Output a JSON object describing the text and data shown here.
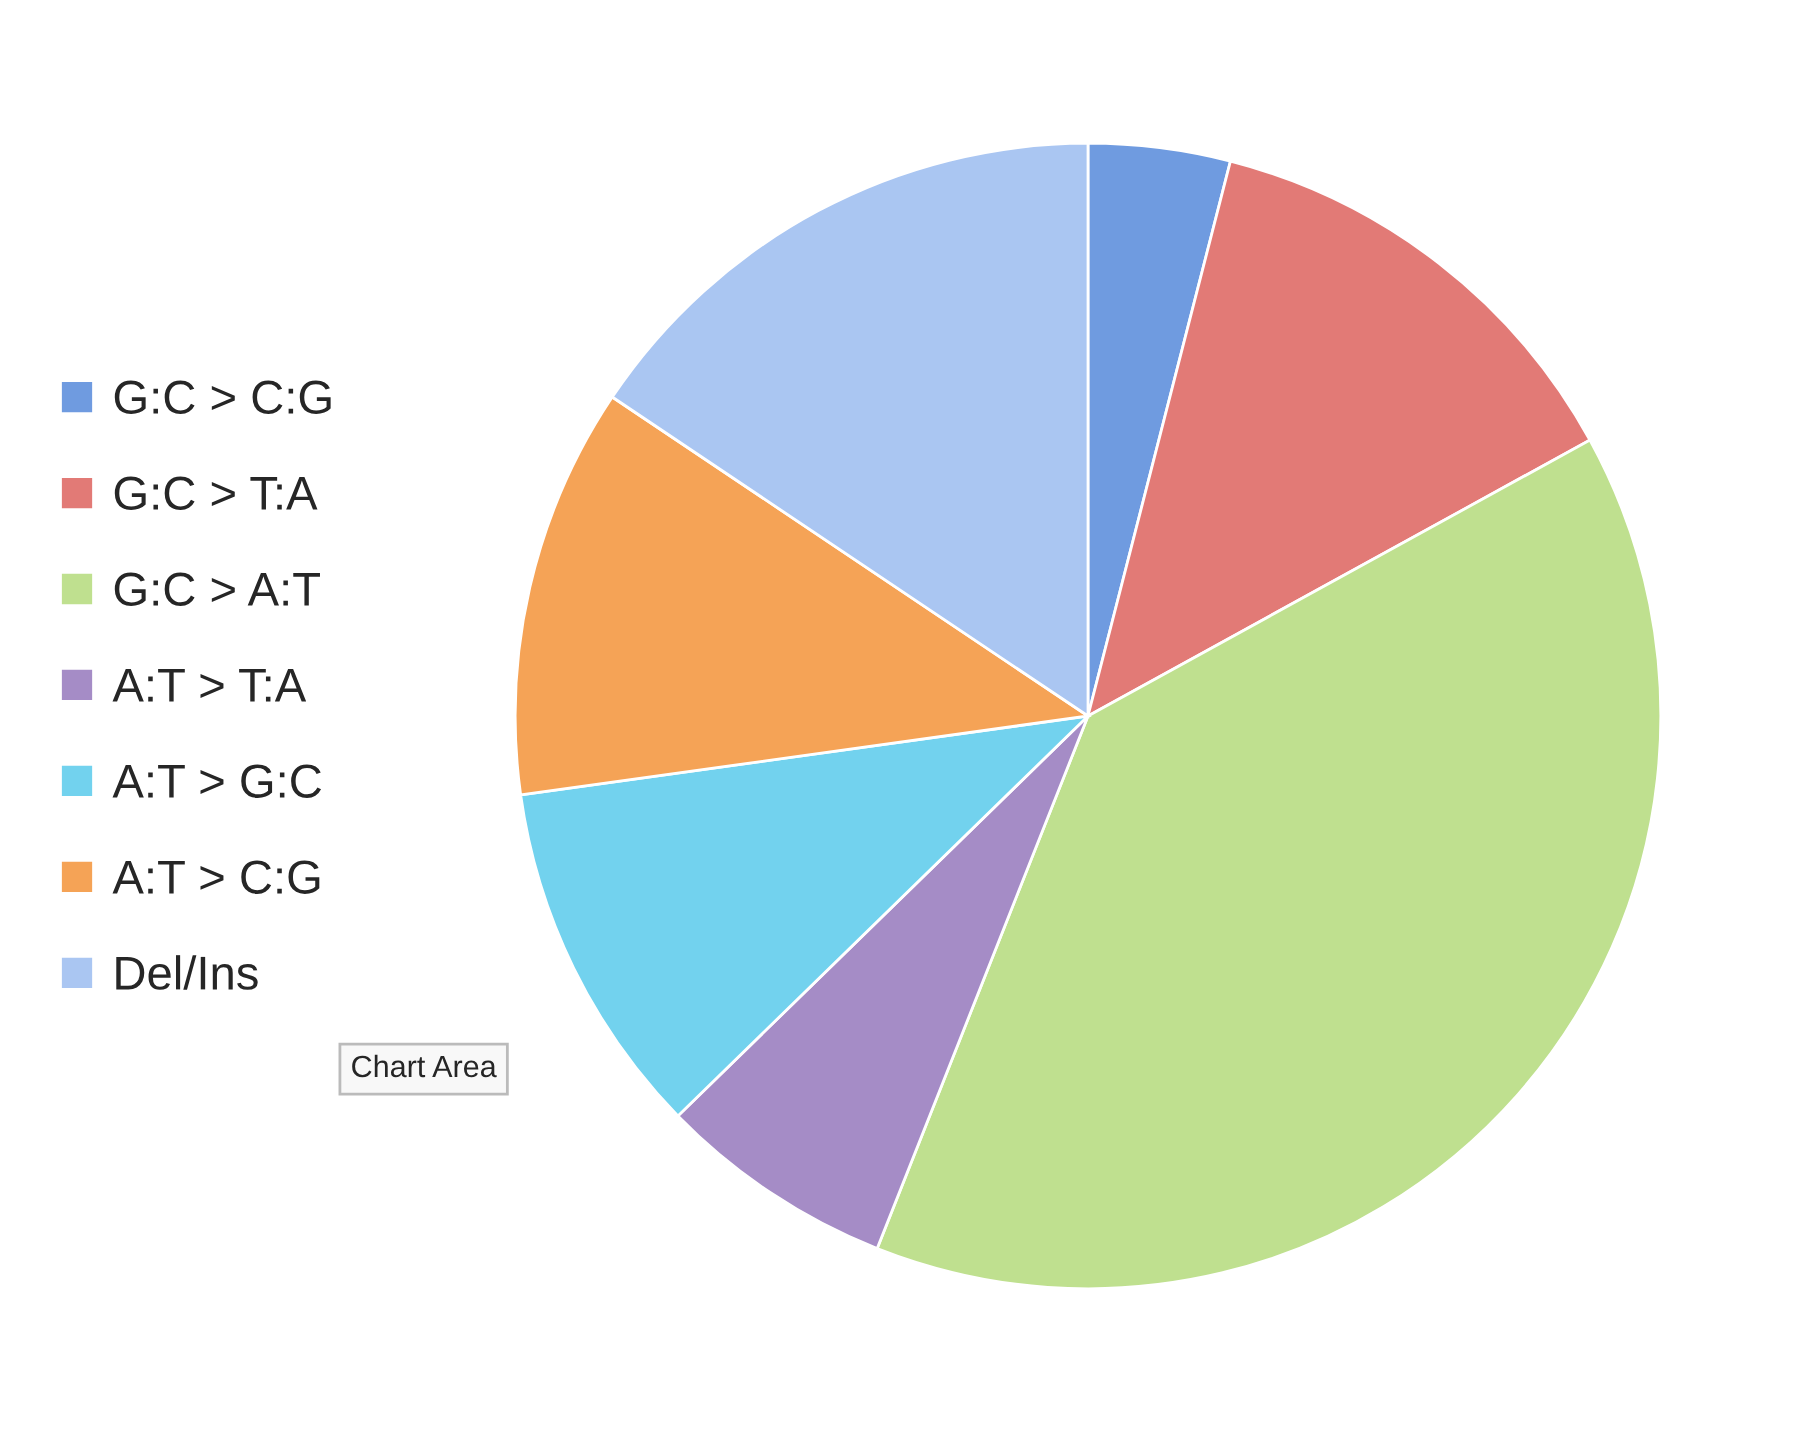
{
  "chart_data": {
    "type": "pie",
    "categories": [
      "G:C > C:G",
      "G:C > T:A",
      "G:C > A:T",
      "A:T > T:A",
      "A:T > G:C",
      "A:T > C:G",
      "Del/Ins"
    ],
    "values": [
      4,
      13,
      39,
      6.7,
      10.1,
      11.6,
      15.6
    ],
    "colors": [
      "#6f9be0",
      "#e27a76",
      "#bfe08f",
      "#a58cc6",
      "#72d2ee",
      "#f5a356",
      "#aac6f2"
    ],
    "legend": "left",
    "annotations": [
      "Chart Area"
    ]
  }
}
